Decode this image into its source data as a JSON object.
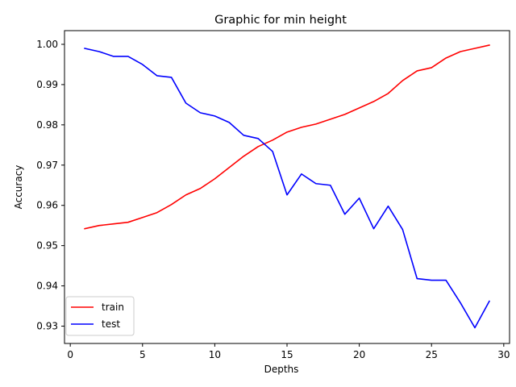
{
  "chart_data": {
    "type": "line",
    "title": "Graphic for min height",
    "xlabel": "Depths",
    "ylabel": "Accuracy",
    "xlim": [
      -0.4,
      30.4
    ],
    "ylim": [
      0.9257,
      1.0034
    ],
    "xticks": [
      0,
      5,
      10,
      15,
      20,
      25,
      30
    ],
    "yticks": [
      0.93,
      0.94,
      0.95,
      0.96,
      0.97,
      0.98,
      0.99,
      1.0
    ],
    "xtick_labels": [
      "0",
      "5",
      "10",
      "15",
      "20",
      "25",
      "30"
    ],
    "ytick_labels": [
      "0.93",
      "0.94",
      "0.95",
      "0.96",
      "0.97",
      "0.98",
      "0.99",
      "1.00"
    ],
    "grid": false,
    "legend_position": "lower-left",
    "x": [
      1,
      2,
      3,
      4,
      5,
      6,
      7,
      8,
      9,
      10,
      11,
      12,
      13,
      14,
      15,
      16,
      17,
      18,
      19,
      20,
      21,
      22,
      23,
      24,
      25,
      26,
      27,
      28,
      29
    ],
    "series": [
      {
        "name": "train",
        "color": "#ff0000",
        "values": [
          0.9542,
          0.955,
          0.9554,
          0.9558,
          0.957,
          0.9582,
          0.9602,
          0.9626,
          0.9642,
          0.9666,
          0.9694,
          0.9722,
          0.9746,
          0.9762,
          0.9782,
          0.9794,
          0.9802,
          0.9814,
          0.9826,
          0.9842,
          0.9858,
          0.9878,
          0.991,
          0.9934,
          0.9942,
          0.9966,
          0.9982,
          0.999,
          0.9998
        ]
      },
      {
        "name": "test",
        "color": "#0000ff",
        "values": [
          0.999,
          0.9982,
          0.997,
          0.997,
          0.995,
          0.9922,
          0.9918,
          0.9854,
          0.983,
          0.9822,
          0.9806,
          0.9774,
          0.9766,
          0.9734,
          0.9626,
          0.9678,
          0.9654,
          0.965,
          0.9578,
          0.9618,
          0.9542,
          0.9598,
          0.954,
          0.9418,
          0.9414,
          0.9414,
          0.9358,
          0.9296,
          0.9362
        ]
      }
    ]
  }
}
